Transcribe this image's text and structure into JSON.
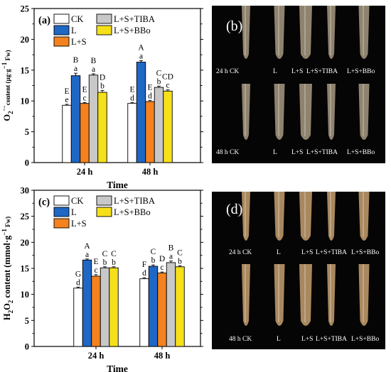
{
  "chart_data": [
    {
      "type": "bar",
      "panel_label": "(a)",
      "ylabel_main": "O",
      "ylabel_sub": "2",
      "ylabel_sup": "·−",
      "ylabel_rest": "content (µg·g",
      "ylabel_sup2": "−1",
      "ylabel_end": " Fw)",
      "xlabel": "Time",
      "categories": [
        "24 h",
        "48 h"
      ],
      "ylim": [
        0,
        25
      ],
      "yticks": [
        "0",
        "5",
        "10",
        "15",
        "20",
        "25"
      ],
      "series": [
        {
          "name": "CK",
          "color": "#ffffff",
          "values": [
            9.3,
            9.6
          ],
          "errors": [
            0.15,
            0.15
          ],
          "upper": [
            "E",
            "E"
          ],
          "lower": [
            "e",
            "d"
          ]
        },
        {
          "name": "L",
          "color": "#1f67c4",
          "values": [
            14.1,
            16.3
          ],
          "errors": [
            0.4,
            0.25
          ],
          "upper": [
            "B",
            "A"
          ],
          "lower": [
            "a",
            "a"
          ]
        },
        {
          "name": "L+S",
          "color": "#f4821e",
          "values": [
            9.6,
            9.9
          ],
          "errors": [
            0.15,
            0.2
          ],
          "upper": [
            "E",
            "E"
          ],
          "lower": [
            "c",
            "d"
          ]
        },
        {
          "name": "L+S+TIBA",
          "color": "#c8c8c8",
          "values": [
            14.2,
            12.2
          ],
          "errors": [
            0.2,
            0.2
          ],
          "upper": [
            "B",
            "C"
          ],
          "lower": [
            "a",
            "b"
          ]
        },
        {
          "name": "L+S+BBo",
          "color": "#f5e01a",
          "values": [
            11.4,
            11.6
          ],
          "errors": [
            0.3,
            0.2
          ],
          "upper": [
            "D",
            "CD"
          ],
          "lower": [
            "b",
            "c"
          ]
        }
      ]
    },
    {
      "type": "bar",
      "panel_label": "(c)",
      "ylabel_main": "H",
      "ylabel_sub": "2",
      "ylabel_mid": "O",
      "ylabel_sub2": "2",
      "ylabel_rest": " content (mmol·g",
      "ylabel_sup2": "−1",
      "ylabel_end": " Fw)",
      "xlabel": "Time",
      "categories": [
        "24 h",
        "48 h"
      ],
      "ylim": [
        0,
        30
      ],
      "yticks": [
        "0",
        "5",
        "10",
        "15",
        "20",
        "25",
        "30"
      ],
      "series": [
        {
          "name": "CK",
          "color": "#ffffff",
          "values": [
            11.2,
            13.0
          ],
          "errors": [
            0.2,
            0.2
          ],
          "upper": [
            "G",
            "F"
          ],
          "lower": [
            "d",
            "d"
          ]
        },
        {
          "name": "L",
          "color": "#1f67c4",
          "values": [
            16.6,
            15.4
          ],
          "errors": [
            0.2,
            0.25
          ],
          "upper": [
            "A",
            "C"
          ],
          "lower": [
            "a",
            "b"
          ]
        },
        {
          "name": "L+S",
          "color": "#f4821e",
          "values": [
            13.5,
            14.1
          ],
          "errors": [
            0.3,
            0.2
          ],
          "upper": [
            "E",
            "D"
          ],
          "lower": [
            "c",
            "c"
          ]
        },
        {
          "name": "L+S+TIBA",
          "color": "#c8c8c8",
          "values": [
            15.1,
            16.1
          ],
          "errors": [
            0.2,
            0.3
          ],
          "upper": [
            "C",
            "B"
          ],
          "lower": [
            "b",
            "a"
          ]
        },
        {
          "name": "L+S+BBo",
          "color": "#f5e01a",
          "values": [
            15.1,
            15.3
          ],
          "errors": [
            0.2,
            0.2
          ],
          "upper": [
            "C",
            "C"
          ],
          "lower": [
            "b",
            "b"
          ]
        }
      ]
    }
  ],
  "photos": [
    {
      "panel_label": "(b)",
      "row_top": {
        "first": "24 h CK",
        "labels": [
          "L",
          "L+S",
          "L+S+TIBA",
          "L+S+BBo"
        ]
      },
      "row_bottom": {
        "first": "48 h CK",
        "labels": [
          "L",
          "L+S",
          "L+S+TIBA",
          "L+S+BBo"
        ]
      },
      "root_color": "#a89a82"
    },
    {
      "panel_label": "(d)",
      "row_top": {
        "first": "24 h CK",
        "labels": [
          "L",
          "L+S",
          "L+S+TIBA",
          "L+S+BBo"
        ]
      },
      "row_bottom": {
        "first": "48 h CK",
        "labels": [
          "L",
          "L+S",
          "L+S+TIBA",
          "L+S+BBo"
        ]
      },
      "root_color": "#c8a070"
    }
  ]
}
